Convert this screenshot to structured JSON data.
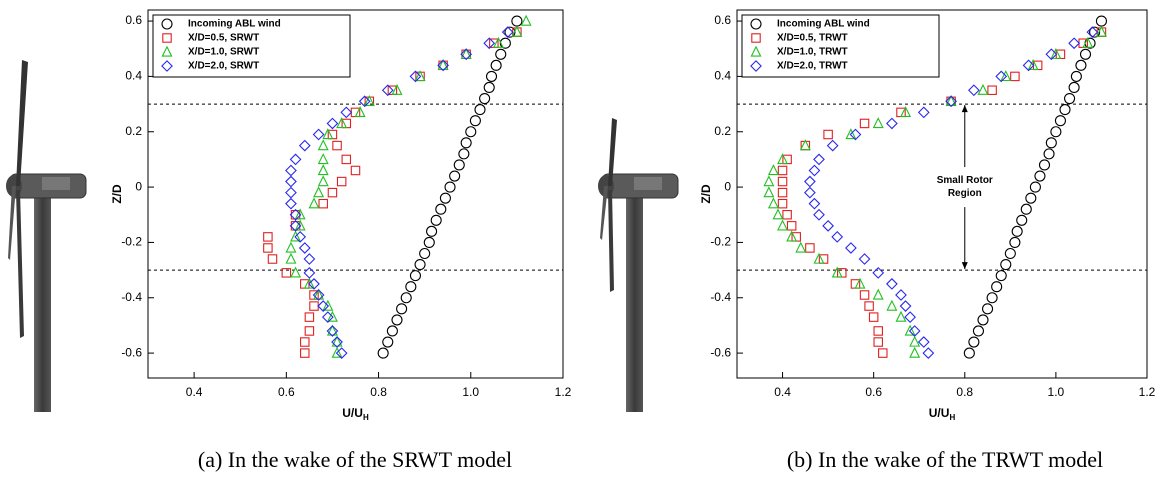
{
  "chart_data": [
    {
      "type": "scatter",
      "caption": "(a) In the wake of the SRWT model",
      "xlabel": "U/U",
      "xlabel_sub": "H",
      "ylabel": "Z/D",
      "xlim": [
        0.3,
        1.2
      ],
      "ylim": [
        -0.69,
        0.64
      ],
      "xticks": [
        0.4,
        0.6,
        0.8,
        {
          "value": 1,
          "label": "1.0"
        },
        1.2
      ],
      "yticks": [
        -0.6,
        -0.4,
        -0.2,
        0,
        0.2,
        0.4,
        0.6
      ],
      "hlines": [
        0.3,
        -0.3
      ],
      "legend": "upper left",
      "series": [
        {
          "name": "Incoming ABL wind",
          "color": "#000000",
          "marker": "circle",
          "x": [
            0.81,
            0.82,
            0.83,
            0.84,
            0.85,
            0.86,
            0.87,
            0.88,
            0.89,
            0.9,
            0.91,
            0.915,
            0.925,
            0.935,
            0.945,
            0.955,
            0.965,
            0.975,
            0.985,
            0.99,
            1.0,
            1.01,
            1.02,
            1.03,
            1.04,
            1.045,
            1.055,
            1.065,
            1.075,
            1.085,
            1.1
          ],
          "values": [
            -0.6,
            -0.56,
            -0.52,
            -0.48,
            -0.44,
            -0.4,
            -0.36,
            -0.32,
            -0.28,
            -0.24,
            -0.2,
            -0.16,
            -0.12,
            -0.08,
            -0.04,
            0,
            0.04,
            0.08,
            0.12,
            0.16,
            0.2,
            0.24,
            0.28,
            0.32,
            0.36,
            0.4,
            0.44,
            0.48,
            0.52,
            0.56,
            0.6
          ]
        },
        {
          "name": "X/D=0.5, SRWT",
          "color": "#e02020",
          "marker": "square",
          "x": [
            1.1,
            1.05,
            0.99,
            0.94,
            0.89,
            0.83,
            0.78,
            0.75,
            0.73,
            0.7,
            0.71,
            0.73,
            0.75,
            0.72,
            0.7,
            0.68,
            0.62,
            0.62,
            0.56,
            0.56,
            0.57,
            0.6,
            0.64,
            0.66,
            0.66,
            0.65,
            0.65,
            0.64,
            0.64
          ],
          "values": [
            0.56,
            0.52,
            0.48,
            0.44,
            0.4,
            0.35,
            0.31,
            0.27,
            0.23,
            0.19,
            0.15,
            0.1,
            0.06,
            0.02,
            -0.02,
            -0.06,
            -0.1,
            -0.14,
            -0.18,
            -0.22,
            -0.26,
            -0.31,
            -0.35,
            -0.39,
            -0.43,
            -0.47,
            -0.52,
            -0.56,
            -0.6
          ]
        },
        {
          "name": "X/D=1.0, SRWT",
          "color": "#20c020",
          "marker": "triangle",
          "x": [
            1.12,
            1.1,
            1.06,
            0.99,
            0.94,
            0.89,
            0.84,
            0.78,
            0.76,
            0.72,
            0.69,
            0.68,
            0.68,
            0.68,
            0.68,
            0.67,
            0.66,
            0.63,
            0.63,
            0.62,
            0.61,
            0.61,
            0.62,
            0.65,
            0.67,
            0.69,
            0.7,
            0.7,
            0.71,
            0.71
          ],
          "values": [
            0.6,
            0.56,
            0.52,
            0.48,
            0.44,
            0.4,
            0.35,
            0.31,
            0.27,
            0.23,
            0.19,
            0.15,
            0.1,
            0.06,
            0.02,
            -0.02,
            -0.06,
            -0.1,
            -0.14,
            -0.18,
            -0.22,
            -0.26,
            -0.31,
            -0.35,
            -0.39,
            -0.43,
            -0.47,
            -0.52,
            -0.56,
            -0.6
          ]
        },
        {
          "name": "X/D=2.0, SRWT",
          "color": "#2828f0",
          "marker": "diamond",
          "x": [
            1.08,
            1.04,
            0.99,
            0.94,
            0.88,
            0.82,
            0.77,
            0.73,
            0.7,
            0.67,
            0.64,
            0.62,
            0.61,
            0.61,
            0.61,
            0.61,
            0.62,
            0.62,
            0.63,
            0.64,
            0.65,
            0.65,
            0.66,
            0.67,
            0.68,
            0.69,
            0.7,
            0.71,
            0.72
          ],
          "values": [
            0.56,
            0.52,
            0.48,
            0.44,
            0.4,
            0.35,
            0.31,
            0.27,
            0.23,
            0.19,
            0.15,
            0.1,
            0.06,
            0.02,
            -0.02,
            -0.06,
            -0.1,
            -0.14,
            -0.18,
            -0.22,
            -0.26,
            -0.31,
            -0.35,
            -0.39,
            -0.43,
            -0.47,
            -0.52,
            -0.56,
            -0.6
          ]
        }
      ]
    },
    {
      "type": "scatter",
      "caption": "(b) In the wake of the TRWT model",
      "xlabel": "U/U",
      "xlabel_sub": "H",
      "ylabel": "Z/D",
      "xlim": [
        0.3,
        1.2
      ],
      "ylim": [
        -0.69,
        0.64
      ],
      "xticks": [
        0.4,
        0.6,
        0.8,
        {
          "value": 1,
          "label": "1.0"
        },
        1.2
      ],
      "yticks": [
        -0.6,
        -0.4,
        -0.2,
        0,
        0.2,
        0.4,
        0.6
      ],
      "hlines": [
        0.3,
        -0.3
      ],
      "legend": "upper left",
      "annotation": {
        "text": [
          "Small Rotor",
          "Region"
        ],
        "x": 0.8
      },
      "series": [
        {
          "name": "Incoming ABL wind",
          "color": "#000000",
          "marker": "circle",
          "x": [
            0.81,
            0.82,
            0.83,
            0.84,
            0.85,
            0.86,
            0.87,
            0.88,
            0.89,
            0.9,
            0.91,
            0.915,
            0.925,
            0.935,
            0.945,
            0.955,
            0.965,
            0.975,
            0.985,
            0.99,
            1.0,
            1.01,
            1.02,
            1.03,
            1.04,
            1.045,
            1.055,
            1.065,
            1.075,
            1.085,
            1.1
          ],
          "values": [
            -0.6,
            -0.56,
            -0.52,
            -0.48,
            -0.44,
            -0.4,
            -0.36,
            -0.32,
            -0.28,
            -0.24,
            -0.2,
            -0.16,
            -0.12,
            -0.08,
            -0.04,
            0,
            0.04,
            0.08,
            0.12,
            0.16,
            0.2,
            0.24,
            0.28,
            0.32,
            0.36,
            0.4,
            0.44,
            0.48,
            0.52,
            0.56,
            0.6
          ]
        },
        {
          "name": "X/D=0.5, TRWT",
          "color": "#e02020",
          "marker": "square",
          "x": [
            1.1,
            1.06,
            1.01,
            0.96,
            0.91,
            0.86,
            0.77,
            0.66,
            0.58,
            0.5,
            0.45,
            0.41,
            0.4,
            0.4,
            0.4,
            0.4,
            0.41,
            0.42,
            0.43,
            0.46,
            0.49,
            0.53,
            0.56,
            0.58,
            0.59,
            0.6,
            0.61,
            0.61,
            0.62
          ],
          "values": [
            0.56,
            0.52,
            0.48,
            0.44,
            0.4,
            0.35,
            0.31,
            0.27,
            0.23,
            0.19,
            0.15,
            0.1,
            0.06,
            0.02,
            -0.02,
            -0.06,
            -0.1,
            -0.14,
            -0.18,
            -0.22,
            -0.26,
            -0.31,
            -0.35,
            -0.39,
            -0.43,
            -0.47,
            -0.52,
            -0.56,
            -0.6
          ]
        },
        {
          "name": "X/D=1.0, TRWT",
          "color": "#20c020",
          "marker": "triangle",
          "x": [
            1.1,
            1.07,
            1.0,
            0.95,
            0.89,
            0.84,
            0.77,
            0.67,
            0.61,
            0.55,
            0.45,
            0.4,
            0.38,
            0.37,
            0.37,
            0.38,
            0.39,
            0.4,
            0.42,
            0.44,
            0.48,
            0.52,
            0.57,
            0.61,
            0.64,
            0.66,
            0.68,
            0.69,
            0.69
          ],
          "values": [
            0.56,
            0.52,
            0.48,
            0.44,
            0.4,
            0.35,
            0.31,
            0.27,
            0.23,
            0.19,
            0.15,
            0.1,
            0.06,
            0.02,
            -0.02,
            -0.06,
            -0.1,
            -0.14,
            -0.18,
            -0.22,
            -0.26,
            -0.31,
            -0.35,
            -0.39,
            -0.43,
            -0.47,
            -0.52,
            -0.56,
            -0.6
          ]
        },
        {
          "name": "X/D=2.0, TRWT",
          "color": "#2828f0",
          "marker": "diamond",
          "x": [
            1.08,
            1.04,
            0.99,
            0.94,
            0.88,
            0.82,
            0.77,
            0.71,
            0.64,
            0.56,
            0.51,
            0.48,
            0.47,
            0.46,
            0.46,
            0.47,
            0.48,
            0.5,
            0.52,
            0.55,
            0.58,
            0.61,
            0.64,
            0.66,
            0.67,
            0.68,
            0.69,
            0.71,
            0.72
          ],
          "values": [
            0.56,
            0.52,
            0.48,
            0.44,
            0.4,
            0.35,
            0.31,
            0.27,
            0.23,
            0.19,
            0.15,
            0.1,
            0.06,
            0.02,
            -0.02,
            -0.06,
            -0.1,
            -0.14,
            -0.18,
            -0.22,
            -0.26,
            -0.31,
            -0.35,
            -0.39,
            -0.43,
            -0.47,
            -0.52,
            -0.56,
            -0.6
          ]
        }
      ]
    }
  ]
}
